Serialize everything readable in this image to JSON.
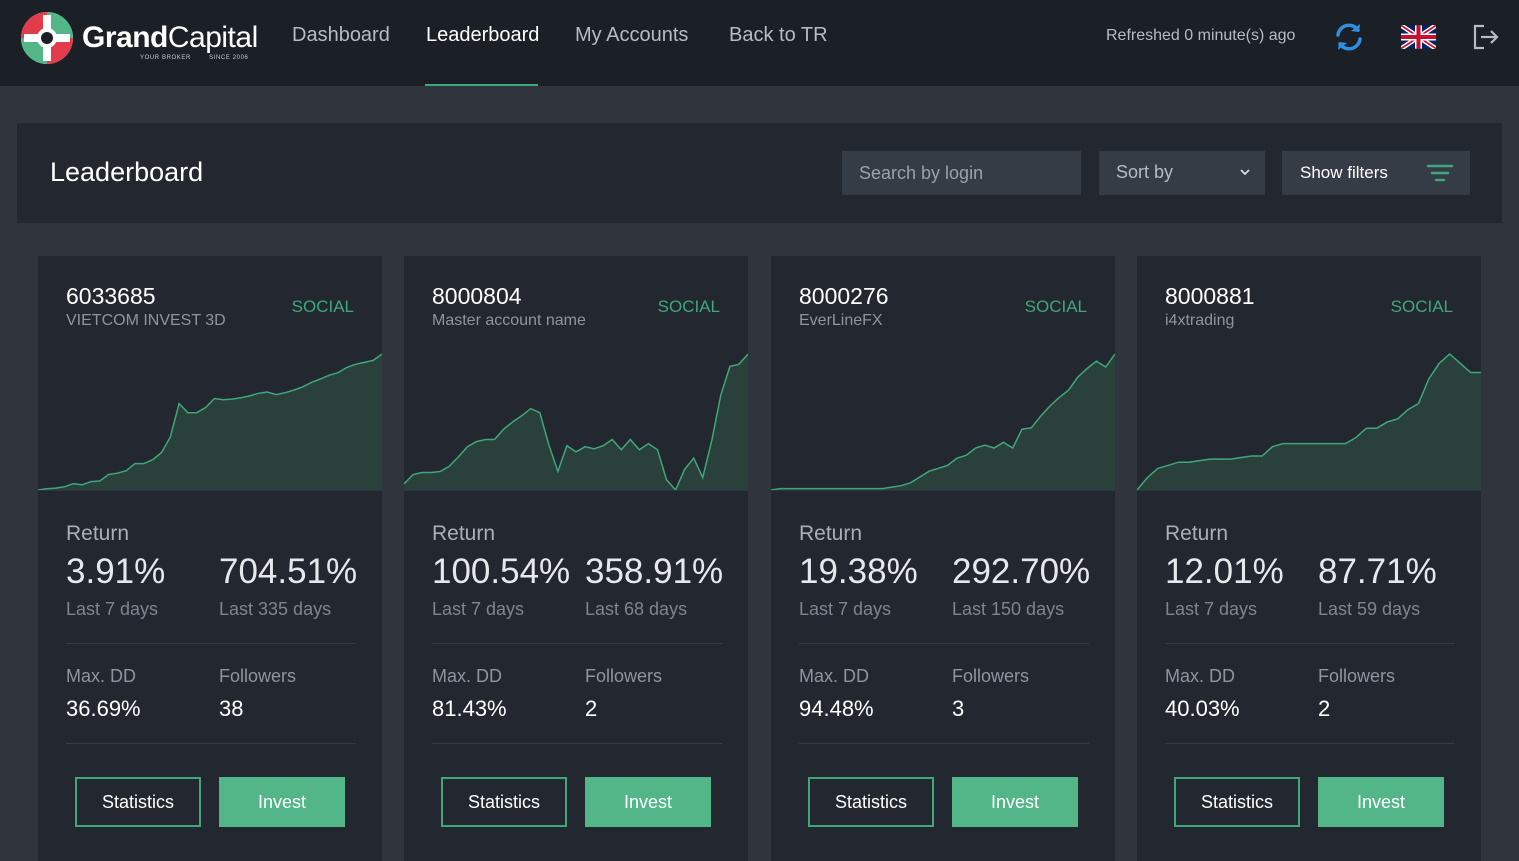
{
  "logo": {
    "name_bold": "Grand",
    "name_light": "Capital",
    "tagline_left": "YOUR BROKER",
    "tagline_right": "SINCE 2006"
  },
  "nav": {
    "items": [
      {
        "label": "Dashboard",
        "active": false
      },
      {
        "label": "Leaderboard",
        "active": true
      },
      {
        "label": "My Accounts",
        "active": false
      },
      {
        "label": "Back to TR",
        "active": false
      }
    ],
    "refreshed": "Refreshed 0 minute(s) ago",
    "icons": {
      "refresh": "refresh-icon",
      "language": "uk-flag-icon",
      "logout": "logout-icon"
    }
  },
  "header": {
    "title": "Leaderboard",
    "search_placeholder": "Search by login",
    "sort_label": "Sort by",
    "filters_label": "Show filters"
  },
  "labels": {
    "return": "Return",
    "max_dd": "Max. DD",
    "followers": "Followers",
    "statistics": "Statistics",
    "invest": "Invest"
  },
  "colors": {
    "accent": "#3fa77a",
    "invest": "#52b689",
    "nav_bg": "#1b1f26",
    "card_bg": "#232830",
    "page_bg": "#30353d"
  },
  "cards": [
    {
      "login": "6033685",
      "name": "VIETCOM INVEST 3D",
      "type": "SOCIAL",
      "return_short": "3.91%",
      "period_short": "Last 7 days",
      "return_long": "704.51%",
      "period_long": "Last 335 days",
      "max_dd": "36.69%",
      "followers": "38",
      "equity_curve": [
        0,
        2,
        3,
        5,
        10,
        8,
        13,
        14,
        24,
        26,
        30,
        41,
        41,
        47,
        58,
        82,
        134,
        120,
        120,
        128,
        142,
        140,
        141,
        143,
        146,
        150,
        152,
        148,
        151,
        155,
        160,
        167,
        172,
        178,
        182,
        190,
        195,
        198,
        201,
        211
      ]
    },
    {
      "login": "8000804",
      "name": "Master account name",
      "type": "SOCIAL",
      "return_short": "100.54%",
      "period_short": "Last 7 days",
      "return_long": "358.91%",
      "period_long": "Last 68 days",
      "max_dd": "81.43%",
      "followers": "2",
      "equity_curve": [
        100,
        109,
        111,
        111,
        112,
        117,
        126,
        136,
        141,
        143,
        143,
        153,
        160,
        166,
        173,
        169,
        138,
        112,
        137,
        131,
        136,
        134,
        137,
        143,
        133,
        143,
        133,
        139,
        133,
        104,
        94,
        114,
        125,
        106,
        142,
        186,
        214,
        216,
        226
      ]
    },
    {
      "login": "8000276",
      "name": "EverLineFX",
      "type": "SOCIAL",
      "return_short": "19.38%",
      "period_short": "Last 7 days",
      "return_long": "292.70%",
      "period_long": "Last 150 days",
      "max_dd": "94.48%",
      "followers": "3",
      "equity_curve": [
        0,
        0.2,
        0.2,
        0.2,
        0.2,
        0.2,
        0.2,
        0.2,
        0.2,
        0.2,
        0.2,
        0.2,
        0.2,
        0.4,
        0.6,
        1,
        1.8,
        2.6,
        3,
        3.4,
        4.4,
        4.8,
        5.8,
        6.2,
        5.8,
        6.6,
        5.8,
        8.4,
        8.6,
        10.2,
        11.6,
        12.8,
        13.8,
        15.6,
        16.8,
        17.8,
        17,
        18.8
      ]
    },
    {
      "login": "8000881",
      "name": "i4xtrading",
      "type": "SOCIAL",
      "return_short": "12.01%",
      "period_short": "Last 7 days",
      "return_long": "87.71%",
      "period_long": "Last 59 days",
      "max_dd": "40.03%",
      "followers": "2",
      "equity_curve": [
        0,
        4,
        7,
        8,
        9,
        9,
        9.5,
        10,
        10,
        10,
        10.5,
        11,
        11,
        14,
        15,
        15,
        15,
        15,
        15,
        15,
        15,
        17,
        20,
        20,
        22,
        23,
        26,
        28,
        36,
        41,
        44,
        41,
        38,
        38
      ]
    }
  ]
}
